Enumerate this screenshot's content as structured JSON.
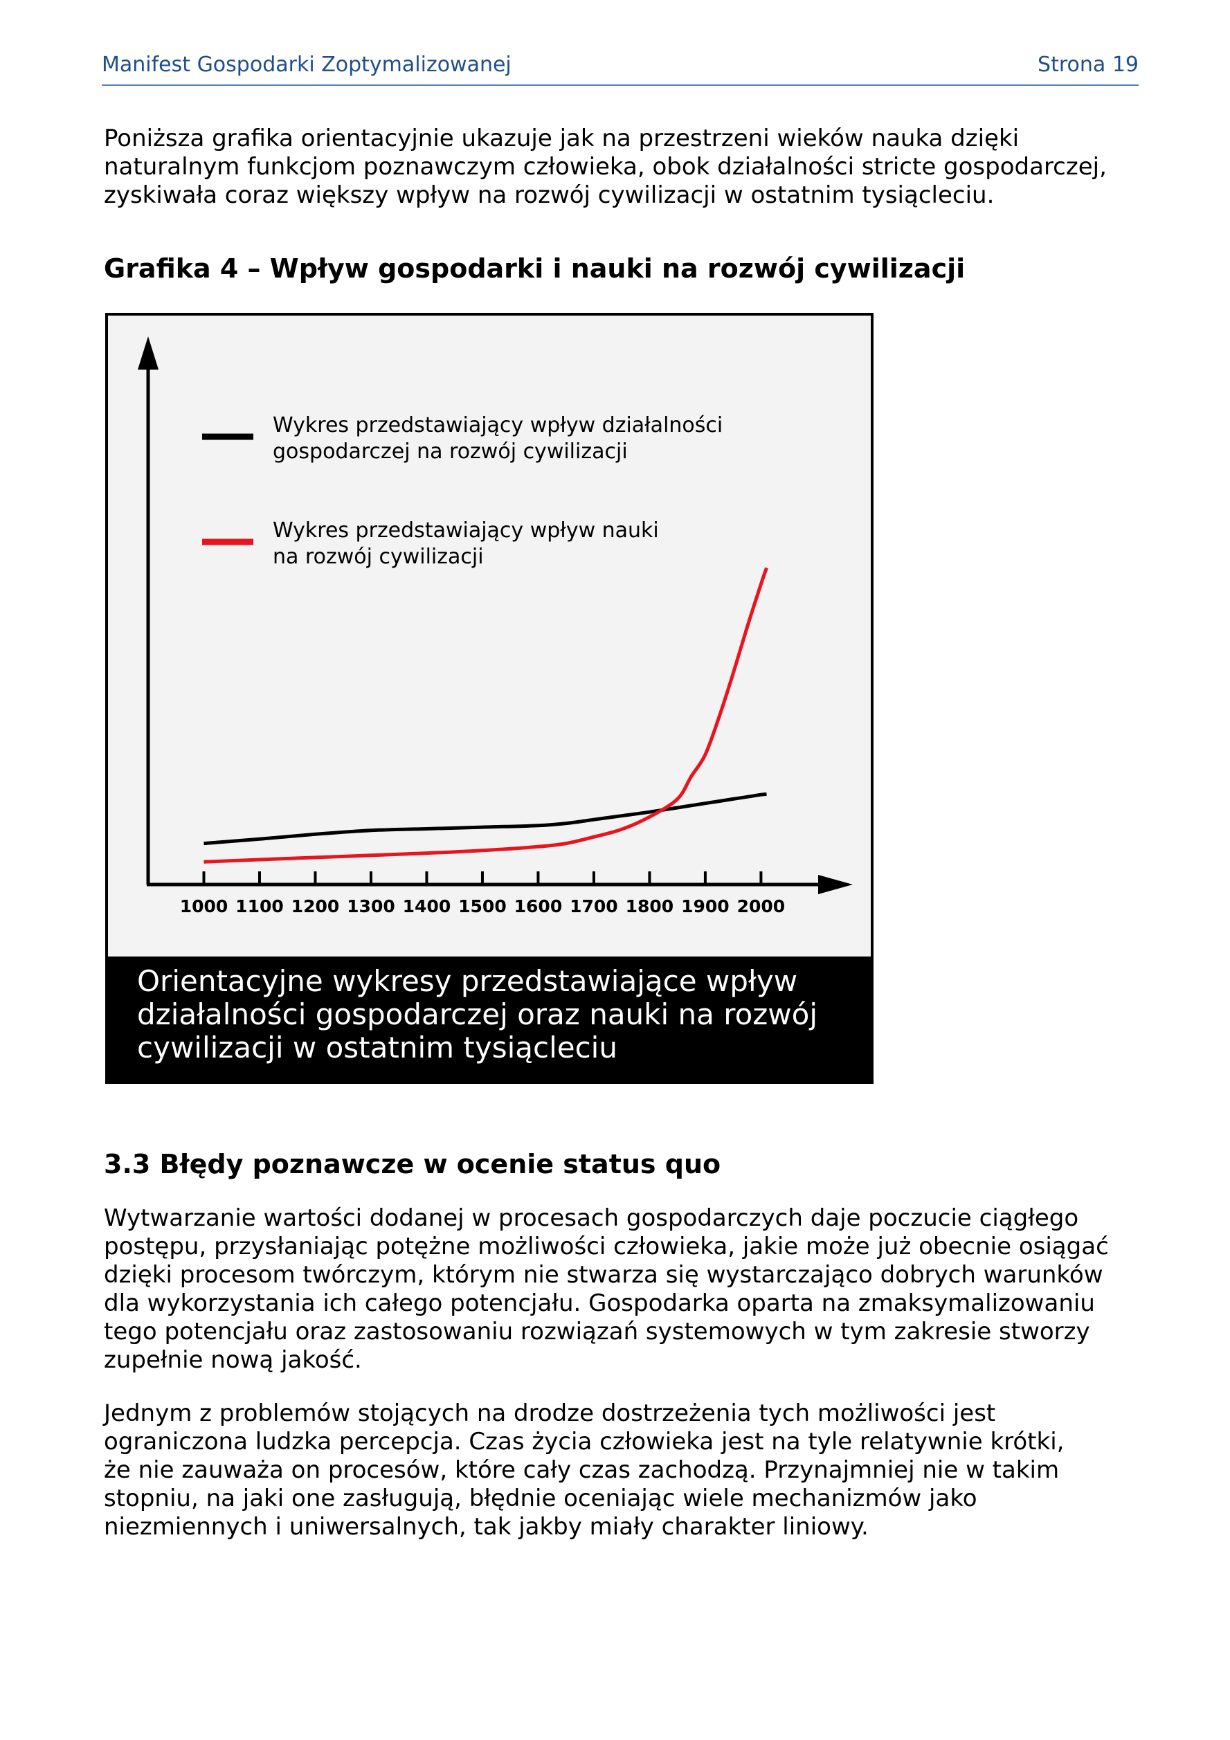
{
  "header": {
    "doc_title": "Manifest Gospodarki Zoptymalizowanej",
    "page_label": "Strona  19"
  },
  "intro_paragraph": "Poniższa grafika orientacyjnie ukazuje jak na przestrzeni wieków nauka dzięki\nnaturalnym funkcjom poznawczym człowieka, obok działalności stricte gospodarczej,\nzyskiwała coraz większy wpływ na rozwój cywilizacji w ostatnim tysiącleciu.",
  "figure_title": "Grafika 4 – Wpływ gospodarki i nauki na rozwój cywilizacji",
  "chart_data": {
    "type": "line",
    "x": [
      1000,
      1100,
      1200,
      1300,
      1400,
      1500,
      1600,
      1650,
      1700,
      1750,
      1800,
      1850,
      1875,
      1900,
      1925,
      1950,
      1975,
      2000,
      2010
    ],
    "series": [
      {
        "name": "Wykres przedstawiający wpływ działalności gospodarczej na rozwój cywilizacji",
        "color": "#000000",
        "values": [
          7.6,
          8.4,
          9.3,
          10.0,
          10.3,
          10.6,
          10.9,
          11.3,
          12.0,
          12.7,
          13.4,
          14.2,
          14.6,
          15.0,
          15.4,
          15.8,
          16.2,
          16.6,
          16.7
        ]
      },
      {
        "name": "Wykres przedstawiający wpływ nauki na rozwój cywilizacji",
        "color": "#e8141e",
        "values": [
          4.2,
          4.6,
          5.0,
          5.4,
          5.8,
          6.3,
          7.0,
          7.6,
          8.8,
          10.2,
          12.5,
          15.8,
          20.0,
          24.0,
          31.0,
          39.0,
          47.5,
          55.5,
          58.5
        ]
      }
    ],
    "x_tick_labels": [
      "1000",
      "1100",
      "1200",
      "1300",
      "1400",
      "1500",
      "1600",
      "1700",
      "1800",
      "1900",
      "2000"
    ],
    "xlim": [
      900,
      2120
    ],
    "ylim": [
      0,
      100
    ],
    "legend": [
      {
        "lines": [
          "Wykres przedstawiający wpływ działalności",
          "gospodarczej na rozwój cywilizacji"
        ],
        "color": "#000000"
      },
      {
        "lines": [
          "Wykres przedstawiający wpływ nauki",
          "na rozwój cywilizacji"
        ],
        "color": "#e8141e"
      }
    ],
    "legend_position": "top-left",
    "grid": false,
    "caption": "Orientacyjne wykresy przedstawiające wpływ\ndziałalności gospodarczej oraz nauki na rozwój\ncywilizacji w ostatnim tysiącleciu"
  },
  "section_heading": "3.3 Błędy poznawcze w ocenie status quo",
  "paragraph_2": "Wytwarzanie wartości dodanej w procesach gospodarczych daje poczucie ciągłego\npostępu, przysłaniając potężne możliwości człowieka, jakie może już obecnie osiągać\ndzięki procesom twórczym, którym nie stwarza się wystarczająco dobrych warunków\ndla wykorzystania ich całego potencjału. Gospodarka oparta na zmaksymalizowaniu\ntego potencjału oraz zastosowaniu rozwiązań systemowych w tym zakresie stworzy\nzupełnie nową jakość.",
  "paragraph_3": "Jednym z problemów stojących na drodze dostrzeżenia tych możliwości jest\nograniczona ludzka percepcja. Czas życia człowieka jest na tyle relatywnie krótki,\nże nie zauważa on procesów, które cały czas zachodzą. Przynajmniej nie w takim\nstopniu, na jaki one zasługują, błędnie oceniając wiele mechanizmów jako\nniezmiennych i uniwersalnych, tak jakby miały charakter liniowy."
}
